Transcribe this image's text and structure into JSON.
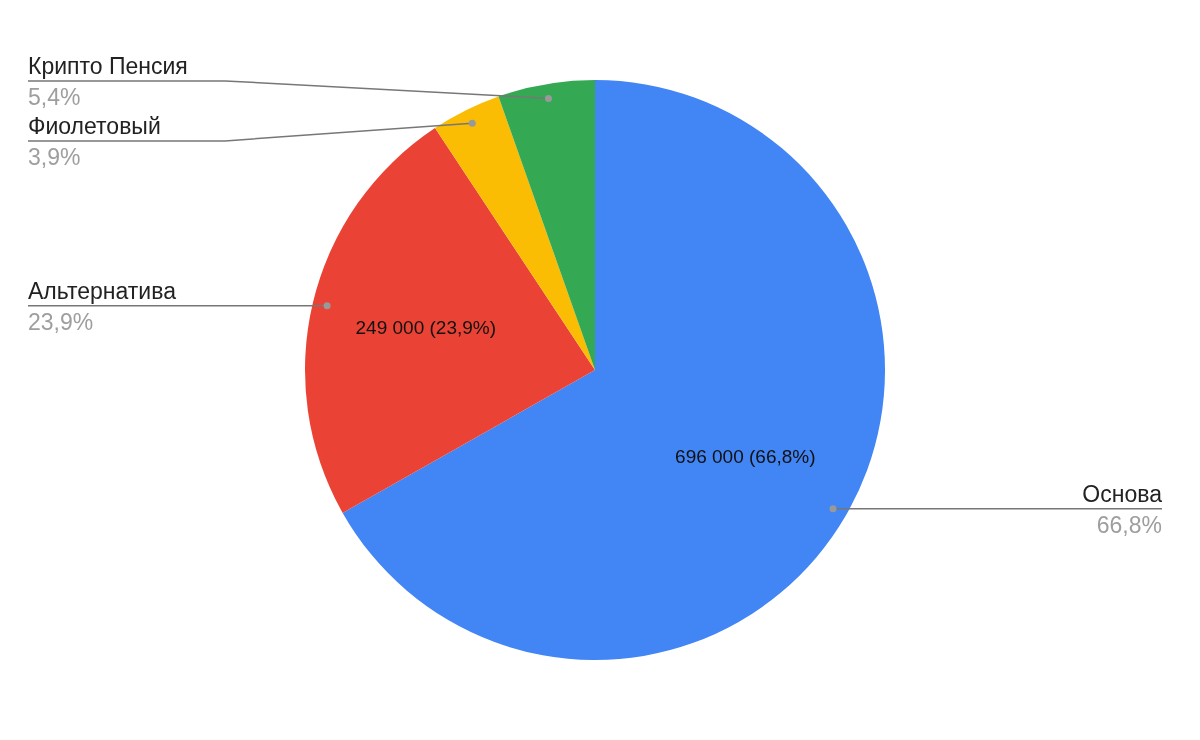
{
  "chart_data": {
    "type": "pie",
    "categories": [
      "Основа",
      "Альтернатива",
      "Фиолетовый",
      "Крипто Пенсия"
    ],
    "values": [
      66.8,
      23.9,
      3.9,
      5.4
    ],
    "colors": [
      "#4285f4",
      "#ea4335",
      "#fbbc04",
      "#34a853"
    ],
    "value_labels": [
      "66,8%",
      "23,9%",
      "3,9%",
      "5,4%"
    ],
    "annotations": [
      "696 000 (66,8%)",
      "249 000 (23,9%)"
    ]
  }
}
